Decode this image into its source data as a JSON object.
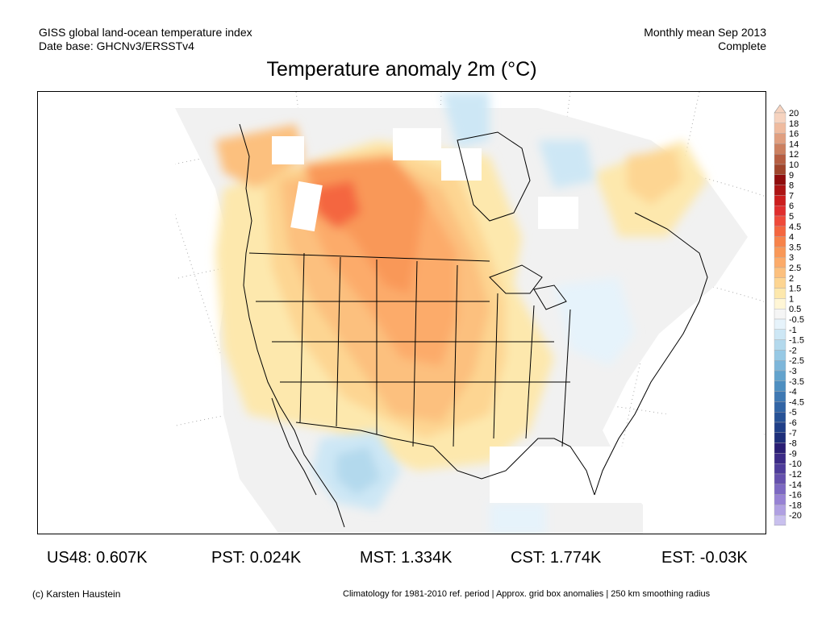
{
  "header": {
    "line1_left": "GISS global land-ocean temperature index",
    "line2_left": "Date base: GHCNv3/ERSSTv4",
    "line1_right": "Monthly mean Sep 2013",
    "line2_right": "Complete"
  },
  "title": "Temperature anomaly 2m (°C)",
  "colorbar": {
    "labels": [
      "20",
      "18",
      "16",
      "14",
      "12",
      "10",
      "9",
      "8",
      "7",
      "6",
      "5",
      "4.5",
      "4",
      "3.5",
      "3",
      "2.5",
      "2",
      "1.5",
      "1",
      "0.5",
      "-0.5",
      "-1",
      "-1.5",
      "-2",
      "-2.5",
      "-3",
      "-3.5",
      "-4",
      "-4.5",
      "-5",
      "-6",
      "-7",
      "-8",
      "-9",
      "-10",
      "-12",
      "-14",
      "-16",
      "-18",
      "-20"
    ],
    "colors": [
      "#f6d3bf",
      "#efbb9f",
      "#e09f80",
      "#cc8060",
      "#b65e42",
      "#a0452c",
      "#900d0d",
      "#ad1515",
      "#cc1e1e",
      "#e02e2e",
      "#ef4a3a",
      "#f4663f",
      "#f7834a",
      "#f99858",
      "#fcab6a",
      "#fcc07e",
      "#fdd592",
      "#fde8ad",
      "#fff6d6",
      "#f5f5f5",
      "#e6f3fb",
      "#cde7f5",
      "#b3d9ed",
      "#97c9e5",
      "#7db6da",
      "#63a3cd",
      "#4e8fc1",
      "#3f79b3",
      "#3265a5",
      "#275296",
      "#203f88",
      "#1e2f7a",
      "#2a1e74",
      "#3b2a86",
      "#4e3c9a",
      "#6550ad",
      "#7c68c2",
      "#9782d4",
      "#b0a0e2",
      "#c9c0ee"
    ]
  },
  "stats": [
    {
      "label": "US48: 0.607K"
    },
    {
      "label": "PST: 0.024K"
    },
    {
      "label": "MST: 1.334K"
    },
    {
      "label": "CST: 1.774K"
    },
    {
      "label": "EST: -0.03K"
    }
  ],
  "footer": {
    "left": "(c) Karsten Haustein",
    "right": "Climatology for 1981-2010 ref. period | Approx. grid box anomalies | 250 km smoothing radius"
  }
}
